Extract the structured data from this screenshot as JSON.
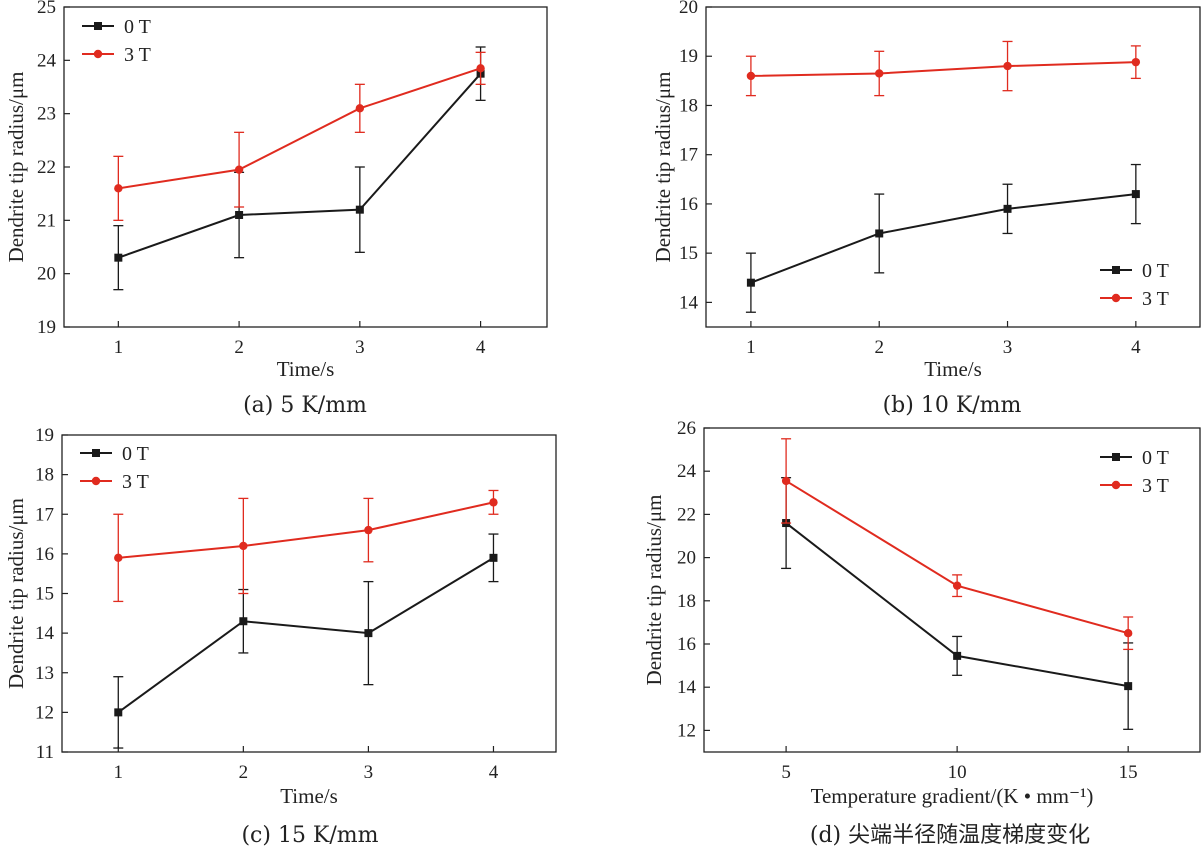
{
  "chart_data": [
    {
      "id": "a",
      "type": "line",
      "caption": "(a) 5 K/mm",
      "xlabel": "Time/s",
      "ylabel": "Dendrite tip radius/μm",
      "x": [
        1,
        2,
        3,
        4
      ],
      "x_ticks": [
        "1",
        "2",
        "3",
        "4"
      ],
      "xlim": [
        0.55,
        4.55
      ],
      "ylim": [
        19,
        25
      ],
      "y_ticks": [
        "19",
        "20",
        "21",
        "22",
        "23",
        "24",
        "25"
      ],
      "legend_position": "top-left",
      "series": [
        {
          "name": "0 T",
          "color": "#1a1a1a",
          "marker": "square",
          "values": [
            20.3,
            21.1,
            21.2,
            23.75
          ],
          "errors": [
            0.6,
            0.8,
            0.8,
            0.5
          ]
        },
        {
          "name": "3 T",
          "color": "#e02b1f",
          "marker": "circle",
          "values": [
            21.6,
            21.95,
            23.1,
            23.85
          ],
          "errors": [
            0.6,
            0.7,
            0.45,
            0.3
          ]
        }
      ]
    },
    {
      "id": "b",
      "type": "line",
      "caption": "(b) 10 K/mm",
      "xlabel": "Time/s",
      "ylabel": "Dendrite tip radius/μm",
      "x": [
        1,
        2,
        3,
        4
      ],
      "x_ticks": [
        "1",
        "2",
        "3",
        "4"
      ],
      "xlim": [
        0.65,
        4.5
      ],
      "ylim": [
        13.5,
        20
      ],
      "y_ticks": [
        "14",
        "15",
        "16",
        "17",
        "18",
        "19",
        "20"
      ],
      "legend_position": "bottom-right",
      "series": [
        {
          "name": "0 T",
          "color": "#1a1a1a",
          "marker": "square",
          "values": [
            14.4,
            15.4,
            15.9,
            16.2
          ],
          "errors": [
            0.6,
            0.8,
            0.5,
            0.6
          ]
        },
        {
          "name": "3 T",
          "color": "#e02b1f",
          "marker": "circle",
          "values": [
            18.6,
            18.65,
            18.8,
            18.88
          ],
          "errors": [
            0.4,
            0.45,
            0.5,
            0.33
          ]
        }
      ]
    },
    {
      "id": "c",
      "type": "line",
      "caption": "(c) 15 K/mm",
      "xlabel": "Time/s",
      "ylabel": "Dendrite tip radius/μm",
      "x": [
        1,
        2,
        3,
        4
      ],
      "x_ticks": [
        "1",
        "2",
        "3",
        "4"
      ],
      "xlim": [
        0.55,
        4.5
      ],
      "ylim": [
        11,
        19
      ],
      "y_ticks": [
        "11",
        "12",
        "13",
        "14",
        "15",
        "16",
        "17",
        "18",
        "19"
      ],
      "legend_position": "top-left",
      "series": [
        {
          "name": "0 T",
          "color": "#1a1a1a",
          "marker": "square",
          "values": [
            12.0,
            14.3,
            14.0,
            15.9
          ],
          "errors": [
            0.9,
            0.8,
            1.3,
            0.6
          ]
        },
        {
          "name": "3 T",
          "color": "#e02b1f",
          "marker": "circle",
          "values": [
            15.9,
            16.2,
            16.6,
            17.3
          ],
          "errors": [
            1.1,
            1.2,
            0.8,
            0.3
          ]
        }
      ]
    },
    {
      "id": "d",
      "type": "line",
      "caption": "(d) 尖端半径随温度梯度变化",
      "xlabel": "Temperature gradient/(K • mm⁻¹)",
      "ylabel": "Dendrite tip radius/μm",
      "x": [
        5,
        10,
        15
      ],
      "x_ticks": [
        "5",
        "10",
        "15"
      ],
      "xlim": [
        2.6,
        17.1
      ],
      "ylim": [
        11,
        26
      ],
      "y_ticks": [
        "12",
        "14",
        "16",
        "18",
        "20",
        "22",
        "24",
        "26"
      ],
      "legend_position": "top-right",
      "series": [
        {
          "name": "0 T",
          "color": "#1a1a1a",
          "marker": "square",
          "values": [
            21.6,
            15.45,
            14.05
          ],
          "errors": [
            2.1,
            0.9,
            2.0
          ]
        },
        {
          "name": "3 T",
          "color": "#e02b1f",
          "marker": "circle",
          "values": [
            23.55,
            18.7,
            16.5
          ],
          "errors": [
            1.95,
            0.5,
            0.75
          ]
        }
      ]
    }
  ]
}
